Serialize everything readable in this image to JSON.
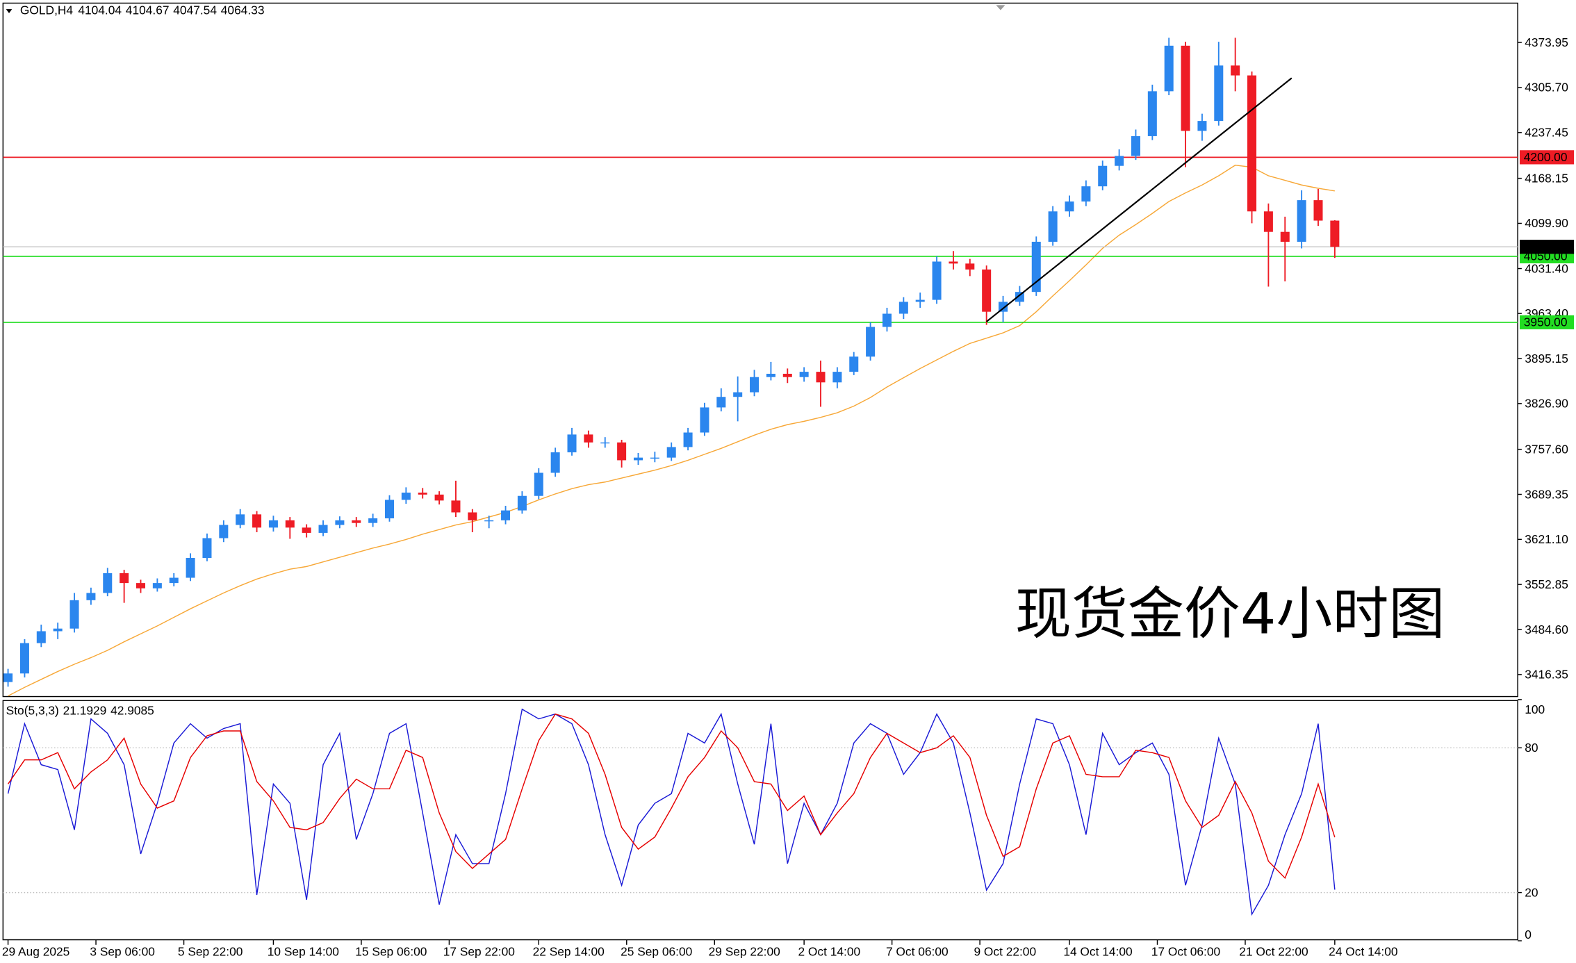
{
  "chart_data": [
    {
      "type": "candlestick",
      "symbol": "GOLD,H4",
      "open": [
        3405,
        3418,
        3464,
        3482,
        3486,
        3529,
        3540,
        3570,
        3555,
        3547,
        3555,
        3563,
        3593,
        3623,
        3643,
        3659,
        3639,
        3650,
        3639,
        3631,
        3643,
        3650,
        3646,
        3653,
        3681,
        3692,
        3689,
        3680,
        3662,
        3650,
        3650,
        3665,
        3687,
        3722,
        3753,
        3780,
        3768,
        3768,
        3741,
        3745,
        3745,
        3761,
        3783,
        3821,
        3837,
        3844,
        3867,
        3872,
        3867,
        3875,
        3859,
        3875,
        3898,
        3943,
        3963,
        3981,
        3984,
        4042,
        4039,
        4030,
        3966,
        3981,
        3996,
        4072,
        4118,
        4133,
        4156,
        4187,
        4202,
        4232,
        4300,
        4369,
        4240,
        4255,
        4339,
        4324,
        4118,
        4087,
        4072,
        4135,
        4104.04
      ],
      "high": [
        3425,
        3470,
        3492,
        3495,
        3540,
        3548,
        3578,
        3575,
        3560,
        3562,
        3570,
        3600,
        3630,
        3650,
        3667,
        3664,
        3657,
        3655,
        3644,
        3650,
        3656,
        3655,
        3660,
        3688,
        3700,
        3699,
        3694,
        3710,
        3667,
        3657,
        3672,
        3694,
        3729,
        3760,
        3790,
        3786,
        3776,
        3772,
        3752,
        3754,
        3768,
        3790,
        3828,
        3850,
        3868,
        3878,
        3890,
        3880,
        3882,
        3892,
        3882,
        3905,
        3950,
        3972,
        3988,
        3995,
        4050,
        4058,
        4046,
        4036,
        3990,
        4005,
        4080,
        4126,
        4142,
        4165,
        4195,
        4212,
        4242,
        4310,
        4381,
        4375,
        4266,
        4375,
        4381,
        4330,
        4130,
        4110,
        4150,
        4152,
        4104.67
      ],
      "low": [
        3398,
        3412,
        3458,
        3470,
        3480,
        3522,
        3535,
        3525,
        3540,
        3542,
        3550,
        3558,
        3588,
        3617,
        3638,
        3632,
        3633,
        3622,
        3624,
        3626,
        3638,
        3640,
        3640,
        3648,
        3675,
        3683,
        3674,
        3655,
        3632,
        3638,
        3644,
        3660,
        3682,
        3716,
        3748,
        3760,
        3760,
        3730,
        3734,
        3738,
        3740,
        3756,
        3778,
        3815,
        3800,
        3838,
        3862,
        3858,
        3860,
        3822,
        3850,
        3870,
        3892,
        3936,
        3955,
        3972,
        3978,
        4030,
        4020,
        3946,
        3950,
        3975,
        3990,
        4066,
        4110,
        4126,
        4150,
        4180,
        4196,
        4226,
        4294,
        4185,
        4225,
        4248,
        4300,
        4100,
        4004,
        4012,
        4062,
        4096,
        4047.54
      ],
      "close": [
        3418,
        3464,
        3482,
        3486,
        3529,
        3540,
        3570,
        3555,
        3547,
        3555,
        3563,
        3593,
        3623,
        3643,
        3659,
        3639,
        3650,
        3639,
        3631,
        3643,
        3650,
        3646,
        3653,
        3681,
        3692,
        3689,
        3680,
        3662,
        3650,
        3650,
        3665,
        3687,
        3722,
        3753,
        3780,
        3768,
        3768,
        3741,
        3745,
        3745,
        3761,
        3783,
        3821,
        3837,
        3844,
        3867,
        3872,
        3867,
        3875,
        3859,
        3875,
        3898,
        3943,
        3963,
        3981,
        3984,
        4042,
        4039,
        4030,
        3966,
        3981,
        3996,
        4072,
        4118,
        4133,
        4156,
        4187,
        4202,
        4232,
        4300,
        4369,
        4240,
        4255,
        4339,
        4324,
        4118,
        4087,
        4072,
        4135,
        4104.04,
        4064.33
      ],
      "colors": {
        "up": "#2b86ee",
        "down": "#ee1c25"
      },
      "ma": {
        "color": "#f7a838",
        "values": [
          3384,
          3397,
          3409,
          3421,
          3432,
          3442,
          3453,
          3466,
          3478,
          3490,
          3503,
          3516,
          3528,
          3540,
          3551,
          3561,
          3569,
          3576,
          3580,
          3587,
          3594,
          3601,
          3608,
          3614,
          3621,
          3629,
          3636,
          3643,
          3648,
          3655,
          3662,
          3671,
          3681,
          3690,
          3698,
          3704,
          3708,
          3714,
          3720,
          3726,
          3733,
          3741,
          3750,
          3759,
          3769,
          3779,
          3788,
          3795,
          3800,
          3806,
          3813,
          3823,
          3836,
          3852,
          3866,
          3880,
          3893,
          3906,
          3918,
          3926,
          3934,
          3945,
          3966,
          3990,
          4013,
          4037,
          4062,
          4082,
          4098,
          4115,
          4133,
          4146,
          4158,
          4172,
          4188,
          4185,
          4172,
          4165,
          4158,
          4153,
          4149
        ]
      },
      "ylim": [
        3383,
        4432
      ],
      "yticks": [
        4373.95,
        {
          "value": 4305.7,
          "label": "4305.70"
        },
        4237.45,
        4168.15,
        {
          "value": 4099.9,
          "label": "4099.90"
        },
        {
          "value": 4031.4,
          "label": "4031.40"
        },
        {
          "value": 3963.4,
          "label": "3963.40"
        },
        3895.15,
        {
          "value": 3826.9,
          "label": "3826.90"
        },
        {
          "value": 3757.6,
          "label": "3757.60"
        },
        3689.35,
        {
          "value": 3621.1,
          "label": "3621.10"
        },
        3552.85,
        {
          "value": 3484.6,
          "label": "3484.60"
        },
        3416.35
      ],
      "hlines": [
        {
          "value": 4200,
          "label": "4200.00",
          "color": "#ee1c25"
        },
        {
          "value": 4050,
          "label": "4050.00",
          "color": "#22dd22"
        },
        {
          "value": 3950,
          "label": "3950.00",
          "color": "#22dd22"
        }
      ],
      "trendline": {
        "x": [
          59,
          77.4
        ],
        "y": [
          3951,
          4320
        ]
      },
      "annotation": "现货金价4小时图"
    },
    {
      "type": "line",
      "title": "Sto(5,3,3)",
      "series": [
        {
          "color": "#1a1ad6",
          "values": [
            61,
            90,
            73,
            71,
            46,
            92,
            86,
            73,
            36,
            57,
            82,
            90,
            84,
            88,
            90,
            19,
            65,
            57,
            17,
            73,
            86,
            42,
            61,
            86,
            90,
            53,
            15,
            44,
            32,
            32,
            61,
            96,
            92,
            94,
            90,
            73,
            44,
            23,
            48,
            57,
            61,
            86,
            82,
            94,
            65,
            40,
            90,
            32,
            57,
            44,
            57,
            82,
            90,
            86,
            69,
            78,
            94,
            82,
            53,
            21,
            32,
            65,
            92,
            90,
            73,
            44,
            86,
            73,
            78,
            82,
            69,
            23,
            48,
            84,
            65,
            11,
            23,
            44,
            61,
            90,
            21.1929
          ]
        },
        {
          "color": "#e60000",
          "values": [
            65,
            75,
            75,
            78,
            63,
            70,
            75,
            84,
            65,
            55,
            58,
            76,
            85,
            87,
            87,
            66,
            58,
            47,
            46,
            49,
            59,
            67,
            63,
            63,
            79,
            76,
            53,
            37,
            30,
            36,
            42,
            63,
            83,
            94,
            92,
            86,
            69,
            47,
            38,
            43,
            55,
            68,
            76,
            87,
            80,
            66,
            65,
            54,
            60,
            44,
            53,
            61,
            76,
            86,
            82,
            78,
            80,
            85,
            76,
            52,
            35,
            39,
            63,
            82,
            85,
            69,
            68,
            68,
            79,
            78,
            76,
            58,
            47,
            52,
            66,
            53,
            33,
            26,
            43,
            65,
            42.9085
          ]
        }
      ],
      "ylim": [
        0,
        100
      ],
      "yticks": [
        100,
        80,
        20,
        0
      ],
      "levels": [
        80,
        20
      ],
      "xticks": [
        {
          "value": 0,
          "label": "29 Aug 2025"
        },
        {
          "value": 5.3,
          "label": "3 Sep 06:00"
        },
        {
          "value": 10.6,
          "label": "5 Sep 22:00"
        },
        {
          "value": 16,
          "label": "10 Sep 14:00"
        },
        {
          "value": 21.3,
          "label": "15 Sep 06:00"
        },
        {
          "value": 26.6,
          "label": "17 Sep 22:00"
        },
        {
          "value": 32,
          "label": "22 Sep 14:00"
        },
        {
          "value": 37.3,
          "label": "25 Sep 06:00"
        },
        {
          "value": 42.6,
          "label": "29 Sep 22:00"
        },
        {
          "value": 48,
          "label": "2 Oct 14:00"
        },
        {
          "value": 53.3,
          "label": "7 Oct 06:00"
        },
        {
          "value": 58.6,
          "label": "9 Oct 22:00"
        },
        {
          "value": 64,
          "label": "14 Oct 14:00"
        },
        {
          "value": 69.3,
          "label": "17 Oct 06:00"
        },
        {
          "value": 74.6,
          "label": "21 Oct 22:00"
        },
        {
          "value": 80,
          "label": "24 Oct 14:00"
        }
      ]
    }
  ]
}
